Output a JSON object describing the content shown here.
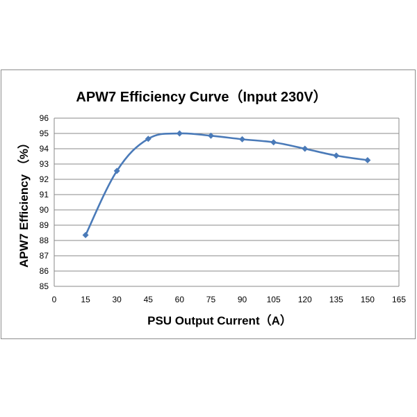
{
  "chart_data": {
    "type": "line",
    "title": "APW7 Efficiency Curve（Input 230V）",
    "xlabel": "PSU Output Current（A）",
    "ylabel": "APW7 Efficiency （%）",
    "xlim": [
      0,
      165
    ],
    "ylim": [
      85,
      96
    ],
    "x_ticks": [
      0,
      15,
      30,
      45,
      60,
      75,
      90,
      105,
      120,
      135,
      150,
      165
    ],
    "y_ticks": [
      85,
      86,
      87,
      88,
      89,
      90,
      91,
      92,
      93,
      94,
      95,
      96
    ],
    "grid": true,
    "legend": "none",
    "series": [
      {
        "x": [
          15,
          30,
          45,
          60,
          75,
          90,
          105,
          120,
          135,
          150
        ],
        "y": [
          88.35,
          92.55,
          94.65,
          95.0,
          94.85,
          94.62,
          94.42,
          94.0,
          93.55,
          93.25
        ],
        "color": "#4a7ab8",
        "marker": "diamond"
      }
    ]
  }
}
